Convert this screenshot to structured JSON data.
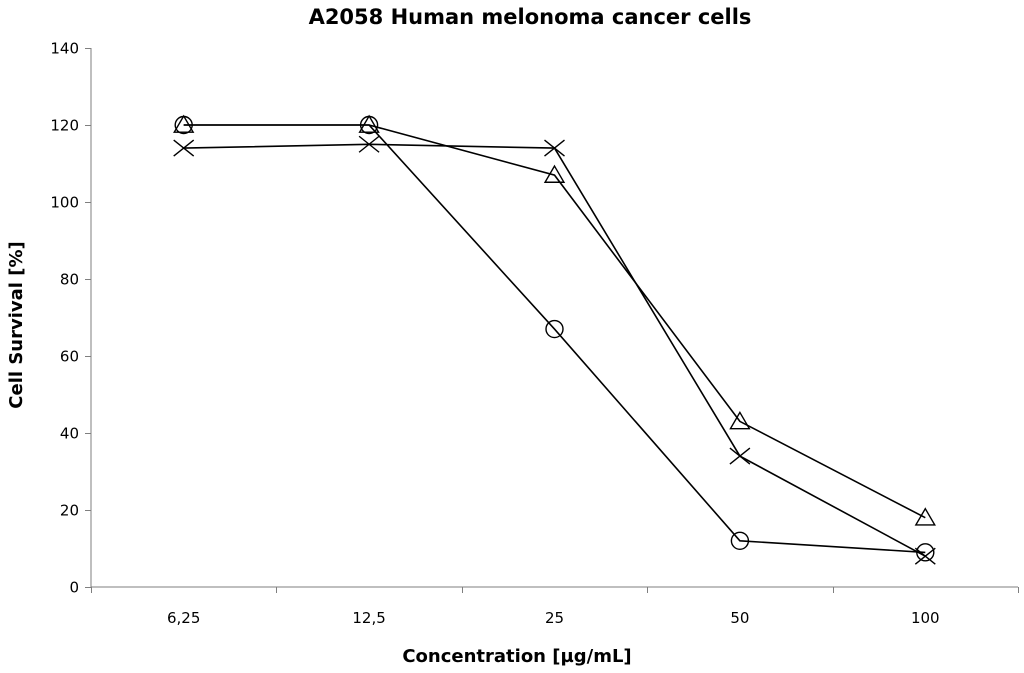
{
  "chart_data": {
    "type": "line",
    "title": "A2058 Human melonoma cancer cells",
    "xlabel": "Concentration [µg/mL]",
    "ylabel": "Cell Survival  [%]",
    "categories": [
      "6,25",
      "12,5",
      "25",
      "50",
      "100"
    ],
    "ylim": [
      0,
      140
    ],
    "yticks": [
      0,
      20,
      40,
      60,
      80,
      100,
      120,
      140
    ],
    "grid": false,
    "legend": "none",
    "series": [
      {
        "name": "circle",
        "marker": "circle",
        "values": [
          120,
          120,
          67,
          12,
          9
        ]
      },
      {
        "name": "triangle",
        "marker": "triangle",
        "values": [
          120,
          120,
          107,
          43,
          18
        ]
      },
      {
        "name": "cross",
        "marker": "cross",
        "values": [
          114,
          115,
          114,
          34,
          8
        ]
      }
    ]
  }
}
